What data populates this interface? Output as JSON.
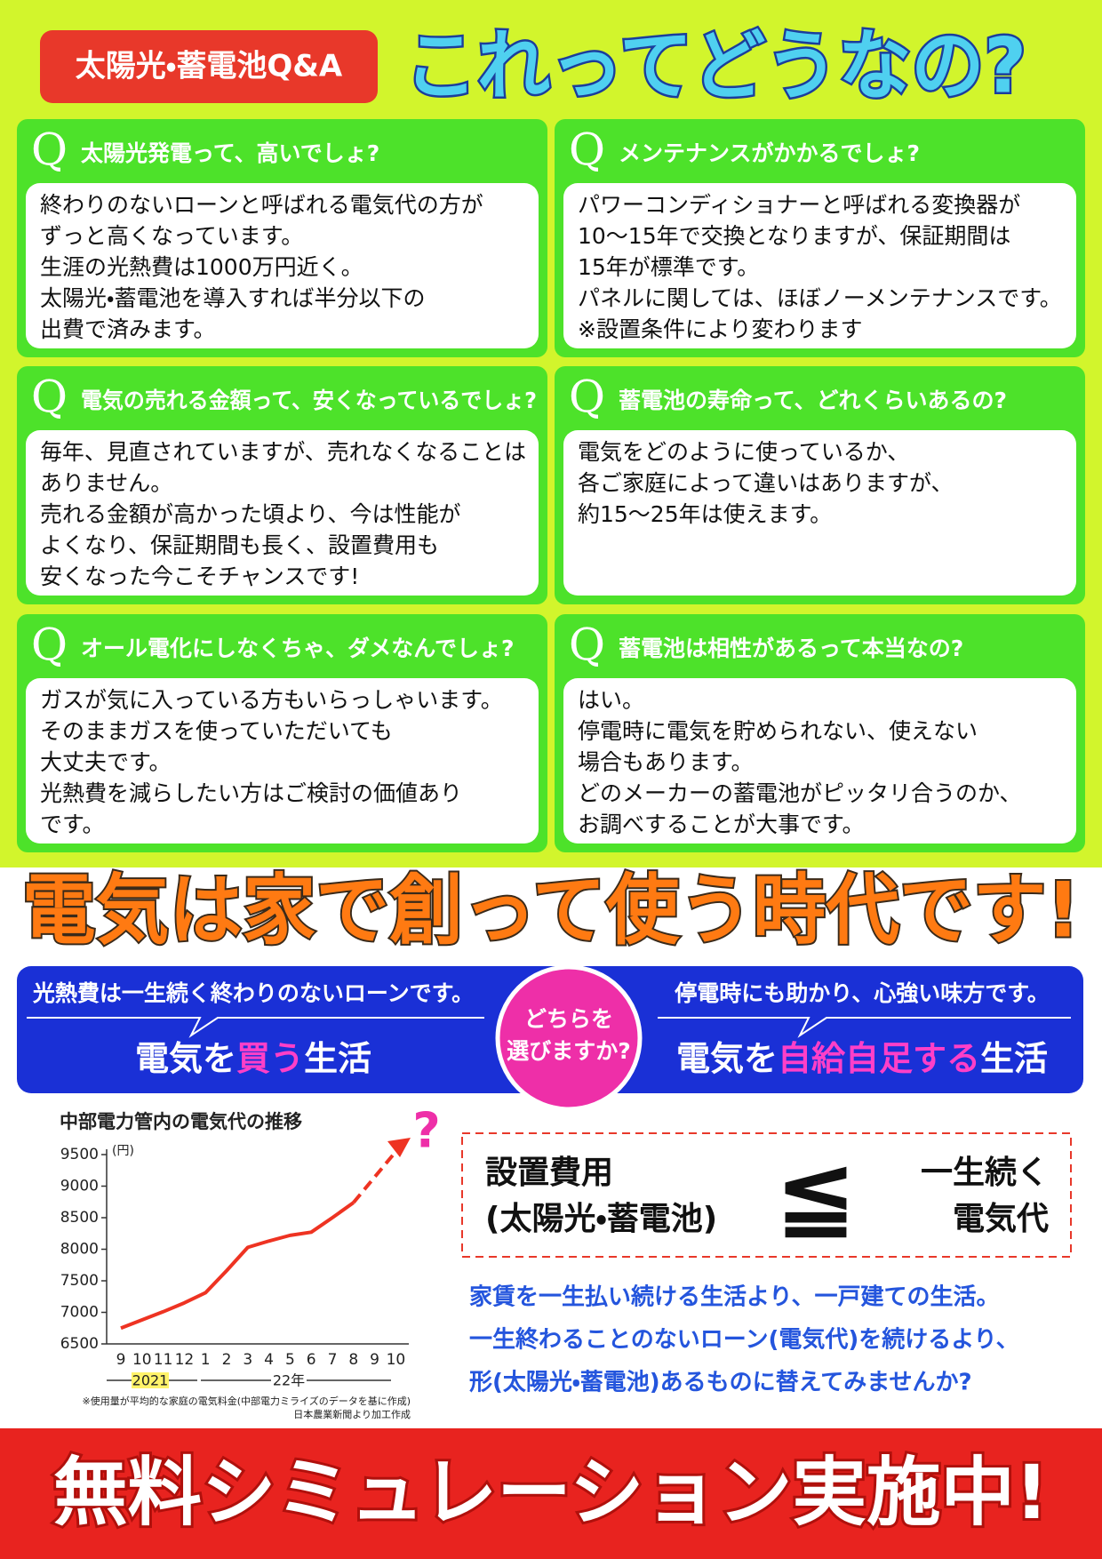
{
  "header": {
    "badge": "太陽光・蓄電池Q&A",
    "title": "これってどうなの?"
  },
  "q_label": "Q",
  "qa": [
    {
      "q": "太陽光発電って、高いでしょ?",
      "a": [
        "終わりのないローンと呼ばれる電気代の方が",
        "ずっと高くなっています。",
        "生涯の光熱費は1000万円近く。",
        "太陽光・蓄電池を導入すれば半分以下の",
        "出費で済みます。"
      ]
    },
    {
      "q": "メンテナンスがかかるでしょ?",
      "a": [
        "パワーコンディショナーと呼ばれる変換器が",
        "10〜15年で交換となりますが、保証期間は",
        "15年が標準です。",
        "パネルに関しては、ほぼノーメンテナンスです。",
        "※設置条件により変わります"
      ]
    },
    {
      "q": "電気の売れる金額って、安くなっているでしょ?",
      "a": [
        "毎年、見直されていますが、売れなくなることは",
        "ありません。",
        "売れる金額が高かった頃より、今は性能が",
        "よくなり、保証期間も長く、設置費用も",
        "安くなった今こそチャンスです!"
      ]
    },
    {
      "q": "蓄電池の寿命って、どれくらいあるの?",
      "a": [
        "電気をどのように使っているか、",
        "各ご家庭によって違いはありますが、",
        "約15〜25年は使えます。"
      ]
    },
    {
      "q": "オール電化にしなくちゃ、ダメなんでしょ?",
      "a": [
        "ガスが気に入っている方もいらっしゃいます。",
        "そのままガスを使っていただいても",
        "大丈夫です。",
        "光熱費を減らしたい方はご検討の価値あり",
        "です。"
      ]
    },
    {
      "q": "蓄電池は相性があるって本当なの?",
      "a": [
        "はい。",
        "停電時に電気を貯められない、使えない",
        "場合もあります。",
        "どのメーカーの蓄電池がピッタリ合うのか、",
        "お調べすることが大事です。"
      ]
    }
  ],
  "banner": "電気は家で創って使う時代です!",
  "compare": {
    "left": {
      "caption": "光熱費は一生続く終わりのないローンです。",
      "life": [
        "電気を",
        "買う",
        "生活"
      ]
    },
    "center": [
      "どちらを",
      "選びますか?"
    ],
    "right": {
      "caption": "停電時にも助かり、心強い味方です。",
      "life": [
        "電気を",
        "自給自足する",
        "生活"
      ]
    }
  },
  "chart": {
    "type": "line",
    "title": "中部電力管内の電気代の推移",
    "unit": "(円)",
    "categories": [
      "9",
      "10",
      "11",
      "12",
      "1",
      "2",
      "3",
      "4",
      "5",
      "6",
      "7",
      "8",
      "9",
      "10"
    ],
    "values": [
      6750,
      6880,
      7010,
      7150,
      7310,
      7660,
      8030,
      8130,
      8220,
      8270,
      8500,
      8740,
      null,
      null
    ],
    "color": "#ee3322",
    "ylim": [
      6500,
      9500
    ],
    "yticks": [
      6500,
      7000,
      7500,
      8000,
      8500,
      9000,
      9500
    ],
    "years": [
      "2021",
      "22年"
    ],
    "annotation": "?",
    "notes": [
      "※使用量が平均的な家庭の電気料金(中部電力ミライズのデータを基に作成)",
      "日本農業新聞より加工作成"
    ]
  },
  "formula": {
    "left": [
      "設置費用",
      "(太陽光・蓄電池)"
    ],
    "symbol": "≦",
    "right": [
      "一生続く",
      "電気代"
    ]
  },
  "message": [
    "家賃を一生払い続ける生活より、一戸建ての生活。",
    "一生終わることのないローン(電気代)を続けるより、",
    "形(太陽光・蓄電池)あるものに替えてみませんか?"
  ],
  "footer": "無料シミュレーション実施中!"
}
